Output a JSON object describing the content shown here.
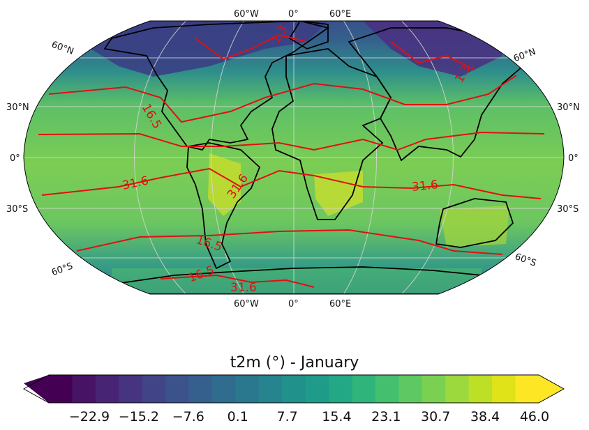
{
  "map": {
    "projection": "Robinson",
    "field": "t2m",
    "lon_labels_top": [
      "60°W",
      "0°",
      "60°E"
    ],
    "lon_labels_bottom": [
      "60°W",
      "0°",
      "60°E"
    ],
    "lat_labels_left": [
      "60°N",
      "30°N",
      "0°",
      "30°S",
      "60°S"
    ],
    "lat_labels_right": [
      "60°N",
      "30°N",
      "0°",
      "30°S",
      "60°S"
    ],
    "contour_color": "#ff0000",
    "coastline_color": "#000000",
    "contour_labels": [
      "16.5",
      "31.6",
      "31.6",
      "31.6",
      "16.5",
      "31.6",
      "16.5",
      "1.3",
      "1.3"
    ]
  },
  "colorbar": {
    "title": "t2m (°) - January",
    "tick_labels": [
      "−22.9",
      "−15.2",
      "−7.6",
      "0.1",
      "7.7",
      "15.4",
      "23.1",
      "30.7",
      "38.4",
      "46.0"
    ],
    "colormap": "viridis",
    "extend": "both"
  }
}
